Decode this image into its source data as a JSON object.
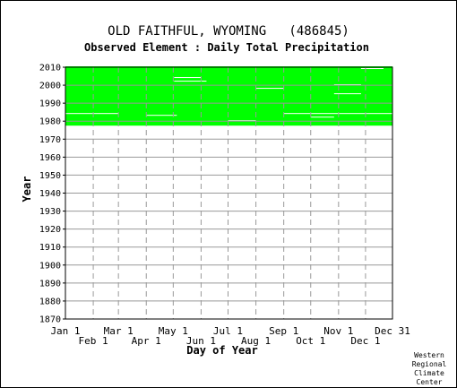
{
  "chart_data": {
    "type": "heatmap",
    "title": "OLD FAITHFUL, WYOMING   (486845)",
    "subtitle": "Observed Element : Daily Total Precipitation",
    "xlabel": "Day of Year",
    "ylabel": "Year",
    "credit": [
      "Western",
      "Regional",
      "Climate",
      "Center"
    ],
    "x_ticks_upper": [
      "Jan 1",
      "Mar 1",
      "May 1",
      "Jul 1",
      "Sep 1",
      "Nov 1",
      "Dec 31"
    ],
    "x_ticks_lower": [
      "Feb 1",
      "Apr 1",
      "Jun 1",
      "Aug 1",
      "Oct 1",
      "Dec 1"
    ],
    "x_tick_days_upper": [
      1,
      60,
      121,
      182,
      244,
      305,
      365
    ],
    "x_tick_days_lower": [
      32,
      91,
      152,
      213,
      274,
      335
    ],
    "y_ticks": [
      2010,
      2000,
      1990,
      1980,
      1970,
      1960,
      1950,
      1940,
      1930,
      1920,
      1910,
      1900,
      1890,
      1880,
      1870
    ],
    "xlim": [
      1,
      365
    ],
    "ylim": [
      1870,
      2010
    ],
    "grid": true,
    "colors": {
      "observed": "#00ff00",
      "background": "#ffffff",
      "grid": "#999999"
    },
    "observed_period": {
      "start_year": 1978,
      "end_year": 2010
    },
    "missing_segments": [
      {
        "year": 2009,
        "start_day": 330,
        "end_day": 355
      },
      {
        "year": 2004,
        "start_day": 122,
        "end_day": 152
      },
      {
        "year": 2002,
        "start_day": 122,
        "end_day": 158
      },
      {
        "year": 2000,
        "start_day": 300,
        "end_day": 330
      },
      {
        "year": 1998,
        "start_day": 213,
        "end_day": 244
      },
      {
        "year": 1995,
        "start_day": 300,
        "end_day": 330
      },
      {
        "year": 1984,
        "start_day": 1,
        "end_day": 60
      },
      {
        "year": 1984,
        "start_day": 244,
        "end_day": 365
      },
      {
        "year": 1983,
        "start_day": 91,
        "end_day": 125
      },
      {
        "year": 1982,
        "start_day": 274,
        "end_day": 300
      },
      {
        "year": 1980,
        "start_day": 182,
        "end_day": 213
      }
    ]
  }
}
